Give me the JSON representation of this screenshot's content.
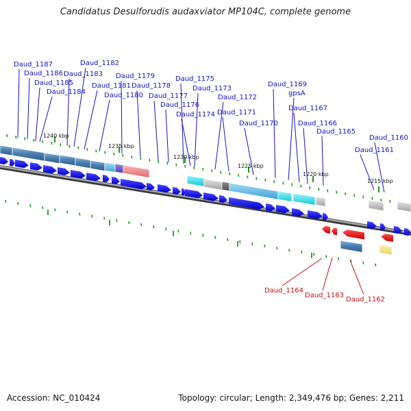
{
  "title": "Candidatus Desulforudis audaxviator MP104C, complete genome",
  "footer": {
    "accession": "Accession: NC_010424",
    "summary": "Topology: circular; Length: 2,349,476 bp; Genes: 2,211"
  },
  "kbp_ticks": [
    "1240 kbp",
    "1235 kbp",
    "1230 kbp",
    "1225 kbp",
    "1220 kbp",
    "1215 kbp"
  ],
  "forward_labels": [
    "Daud_1187",
    "Daud_1186",
    "Daud_1185",
    "Daud_1184",
    "Daud_1183",
    "Daud_1182",
    "Daud_1181",
    "Daud_1180",
    "Daud_1179",
    "Daud_1178",
    "Daud_1177",
    "Daud_1176",
    "Daud_1175",
    "Daud_1174",
    "Daud_1173",
    "Daud_1172",
    "Daud_1171",
    "Daud_1170",
    "Daud_1169",
    "gpsA",
    "Daud_1167",
    "Daud_1166",
    "Daud_1165",
    "Daud_1161",
    "Daud_1160"
  ],
  "reverse_labels": [
    "Daud_1164",
    "Daud_1163",
    "Daud_1162"
  ],
  "colors": {
    "forward_gene": "#0000ee",
    "reverse_gene": "#ee0000",
    "forward_label": "#1010c0",
    "reverse_label": "#c01010",
    "cog_blue": "#4a7fb0",
    "cog_light_blue": "#5ab0e0",
    "cog_cyan": "#1ad8e8",
    "cog_gray": "#b0b0b0",
    "cog_pink": "#f08080",
    "cog_purple": "#6a5acd",
    "cog_yellow": "#f0e080",
    "backbone": "#808080",
    "tick": "#1a9a1a"
  }
}
